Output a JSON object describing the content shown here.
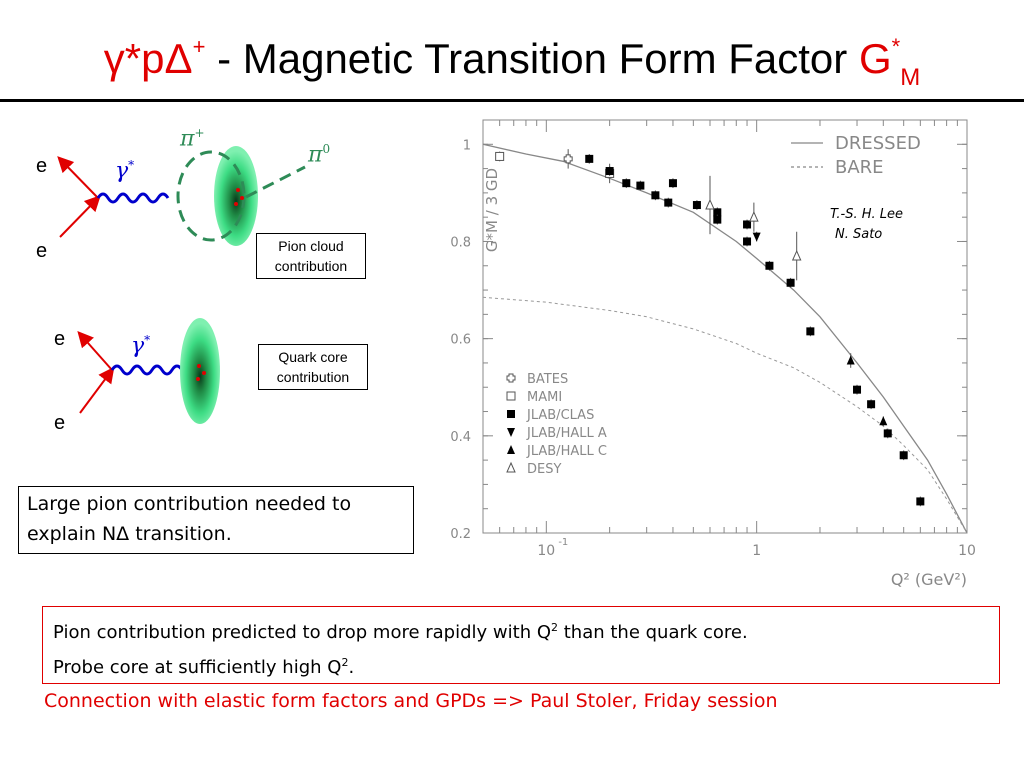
{
  "slide": {
    "title_part1": "γ*pΔ",
    "title_plus": "+",
    "title_part2": " - Magnetic Transition Form Factor ",
    "title_G": "G",
    "title_star": "*",
    "title_M": "M"
  },
  "diagram": {
    "e_labels": [
      "e",
      "e",
      "e",
      "e"
    ],
    "gamma_label": "γ",
    "gamma_star": "*",
    "pi_plus": "π",
    "pi_plus_sup": "+",
    "pi_zero": "π",
    "pi_zero_sup": "0",
    "pion_cloud_box": [
      "Pion cloud",
      "contribution"
    ],
    "quark_core_box": [
      "Quark core",
      "contribution"
    ],
    "colors": {
      "photon": "#0000cc",
      "electron": "#e00000",
      "pion": "#2e8b57",
      "blob": "#3ddc84"
    }
  },
  "notes": {
    "large_pion": "Large pion contribution needed to explain NΔ transition.",
    "prediction_line1": "Pion contribution predicted to drop more rapidly with Q",
    "prediction_sup1": "2",
    "prediction_after1": " than the quark core.",
    "prediction_line2": "Probe core at sufficiently high Q",
    "prediction_sup2": "2",
    "prediction_after2": ".",
    "footer": "Connection with elastic form factors and GPDs => Paul Stoler, Friday session"
  },
  "chart_data": {
    "type": "scatter",
    "xscale": "log",
    "xlim": [
      0.05,
      10
    ],
    "ylim": [
      0.2,
      1.05
    ],
    "yticks": [
      0.2,
      0.4,
      0.6,
      0.8,
      1
    ],
    "ytick_labels": [
      "0.2",
      "0.4",
      "0.6",
      "0.8",
      "1"
    ],
    "xtick_labels": [
      "10",
      "1",
      "10"
    ],
    "xtick_label_exp": "-1",
    "xlabel": "Q² (GeV²)",
    "ylabel": "G*M / 3 GD",
    "annotation": [
      "T.-S. H. Lee",
      "N. Sato"
    ],
    "curves": [
      {
        "name": "DRESSED",
        "style": "solid",
        "x": [
          0.05,
          0.08,
          0.12,
          0.2,
          0.3,
          0.5,
          0.8,
          1.0,
          1.5,
          2.0,
          3.0,
          4.0,
          5.0,
          6.5,
          8.0,
          10.0
        ],
        "y": [
          1.0,
          0.98,
          0.965,
          0.93,
          0.9,
          0.86,
          0.8,
          0.765,
          0.7,
          0.645,
          0.55,
          0.48,
          0.42,
          0.35,
          0.28,
          0.2
        ]
      },
      {
        "name": "BARE",
        "style": "dashed",
        "x": [
          0.05,
          0.1,
          0.2,
          0.3,
          0.5,
          0.8,
          1.0,
          1.5,
          2.0,
          3.0,
          4.0,
          5.0,
          6.5,
          8.0,
          10.0
        ],
        "y": [
          0.685,
          0.675,
          0.658,
          0.645,
          0.62,
          0.59,
          0.57,
          0.54,
          0.51,
          0.46,
          0.42,
          0.38,
          0.33,
          0.27,
          0.2
        ]
      }
    ],
    "series": [
      {
        "name": "BATES",
        "marker": "open-cross",
        "x": [
          0.127
        ],
        "y": [
          0.97
        ],
        "err": [
          0.02
        ]
      },
      {
        "name": "MAMI",
        "marker": "open-square",
        "x": [
          0.06,
          0.2
        ],
        "y": [
          0.975,
          0.94
        ],
        "err": [
          0.01,
          0.02
        ]
      },
      {
        "name": "JLAB/CLAS",
        "marker": "filled-square",
        "x": [
          0.16,
          0.2,
          0.24,
          0.28,
          0.33,
          0.38,
          0.4,
          0.52,
          0.65,
          0.65,
          0.9,
          0.9,
          1.15,
          1.45,
          1.8,
          3.0,
          3.5,
          4.2,
          5.0,
          6.0
        ],
        "y": [
          0.97,
          0.945,
          0.92,
          0.915,
          0.895,
          0.88,
          0.92,
          0.875,
          0.86,
          0.845,
          0.835,
          0.8,
          0.75,
          0.715,
          0.615,
          0.495,
          0.465,
          0.405,
          0.36,
          0.265
        ],
        "err": [
          0.01,
          0.01,
          0.01,
          0.01,
          0.01,
          0.01,
          0.01,
          0.01,
          0.01,
          0.01,
          0.01,
          0.01,
          0.01,
          0.01,
          0.01,
          0.01,
          0.01,
          0.01,
          0.01,
          0.01
        ]
      },
      {
        "name": "JLAB/HALL A",
        "marker": "filled-down-triangle",
        "x": [
          1.0
        ],
        "y": [
          0.81
        ],
        "err": [
          0.01
        ]
      },
      {
        "name": "JLAB/HALL C",
        "marker": "filled-up-triangle",
        "x": [
          2.8,
          4.0
        ],
        "y": [
          0.555,
          0.43
        ],
        "err": [
          0.015,
          0.01
        ]
      },
      {
        "name": "DESY",
        "marker": "open-up-triangle",
        "x": [
          0.6,
          0.97,
          1.55
        ],
        "y": [
          0.875,
          0.85,
          0.77
        ],
        "err": [
          0.06,
          0.03,
          0.05
        ]
      }
    ]
  }
}
